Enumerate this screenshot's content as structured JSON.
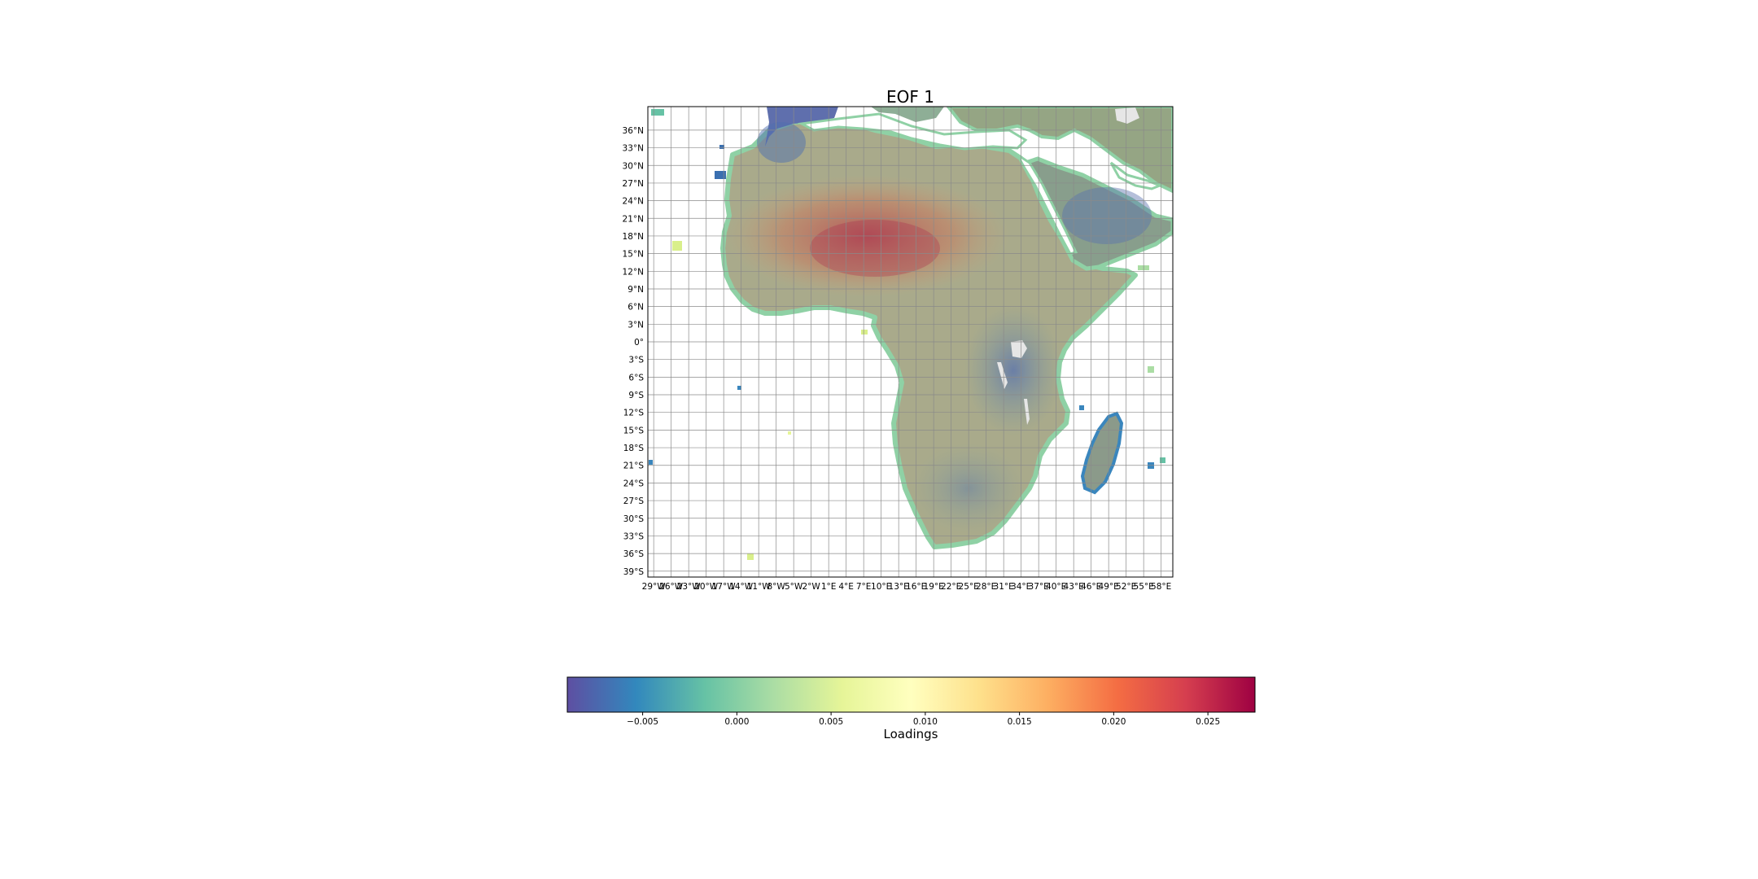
{
  "figure": {
    "title": "EOF 1"
  },
  "map": {
    "region": "Africa",
    "extent": {
      "lon_min": -30,
      "lon_max": 60,
      "lat_min": -40,
      "lat_max": 40
    },
    "gridlines": true,
    "lat_ticks": [
      "36°N",
      "33°N",
      "30°N",
      "27°N",
      "24°N",
      "21°N",
      "18°N",
      "15°N",
      "12°N",
      "9°N",
      "6°N",
      "3°N",
      "0°",
      "3°S",
      "6°S",
      "9°S",
      "12°S",
      "15°S",
      "18°S",
      "21°S",
      "24°S",
      "27°S",
      "30°S",
      "33°S",
      "36°S",
      "39°S"
    ],
    "lon_ticks": [
      "29°W",
      "26°W",
      "23°W",
      "20°W",
      "17°W",
      "14°W",
      "11°W",
      "8°W",
      "5°W",
      "2°W",
      "1°E",
      "4°E",
      "7°E",
      "10°E",
      "13°E",
      "16°E",
      "19°E",
      "22°E",
      "25°E",
      "28°E",
      "31°E",
      "34°E",
      "37°E",
      "40°E",
      "43°E",
      "46°E",
      "49°E",
      "52°E",
      "55°E",
      "58°E"
    ],
    "lat_tick_values": [
      36,
      33,
      30,
      27,
      24,
      21,
      18,
      15,
      12,
      9,
      6,
      3,
      0,
      -3,
      -6,
      -9,
      -12,
      -15,
      -18,
      -21,
      -24,
      -27,
      -30,
      -33,
      -36,
      -39
    ],
    "lon_tick_values": [
      -29,
      -26,
      -23,
      -20,
      -17,
      -14,
      -11,
      -8,
      -5,
      -2,
      1,
      4,
      7,
      10,
      13,
      16,
      19,
      22,
      25,
      28,
      31,
      34,
      37,
      40,
      43,
      46,
      49,
      52,
      55,
      58
    ]
  },
  "colorbar": {
    "label": "Loadings",
    "cmap": "Spectral_r",
    "vmin": -0.009,
    "vmax": 0.0275,
    "ticks": [
      "−0.005",
      "0.000",
      "0.005",
      "0.010",
      "0.015",
      "0.020",
      "0.025"
    ],
    "tick_values": [
      -0.005,
      0.0,
      0.005,
      0.01,
      0.015,
      0.02,
      0.025
    ],
    "colors": [
      "#5e4fa2",
      "#3288bd",
      "#66c2a5",
      "#abdda4",
      "#e6f598",
      "#ffffbf",
      "#fee08b",
      "#fdae61",
      "#f46d43",
      "#d53e4f",
      "#9e0142"
    ]
  }
}
